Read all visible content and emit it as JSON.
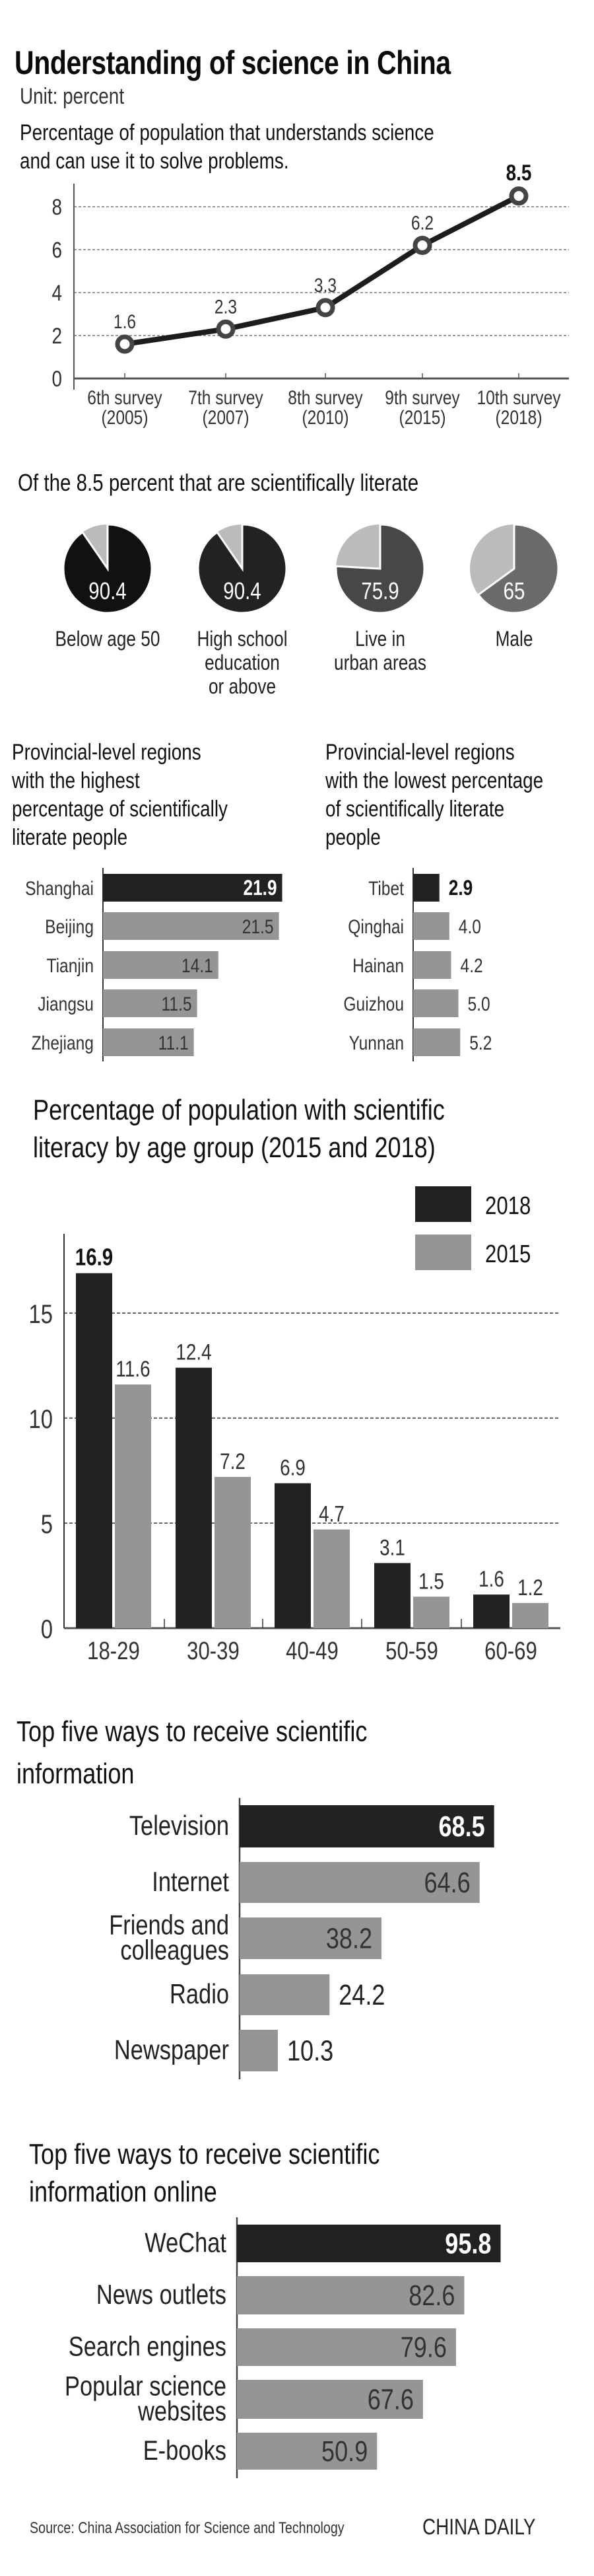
{
  "header": {
    "title": "Understanding of science in China",
    "unit": "Unit: percent"
  },
  "footer": {
    "source": "Source: China Association for Science and Technology",
    "brand": "CHINA DAILY"
  },
  "colors": {
    "dark": "#222222",
    "darkest": "#111111",
    "gray": "#959595",
    "light_gray": "#bbbbbb",
    "mid_dark": "#474747",
    "mid": "#6a6a6a",
    "text": "#333333"
  },
  "chart_data": [
    {
      "id": "survey-line",
      "type": "line",
      "title": "Percentage of population that understands science and can use it to solve problems.",
      "title_lines": [
        "Percentage of population that understands science",
        "and can use it to solve problems."
      ],
      "categories": [
        [
          "6th survey",
          "(2005)"
        ],
        [
          "7th survey",
          "(2007)"
        ],
        [
          "8th survey",
          "(2010)"
        ],
        [
          "9th survey",
          "(2015)"
        ],
        [
          "10th survey",
          "(2018)"
        ]
      ],
      "values": [
        1.6,
        2.3,
        3.3,
        6.2,
        8.5
      ],
      "value_labels": [
        "1.6",
        "2.3",
        "3.3",
        "6.2",
        "8.5"
      ],
      "highlight_index": 4,
      "yticks": [
        0,
        2,
        4,
        6,
        8
      ],
      "ylim": [
        0,
        9
      ],
      "grid": true,
      "xlabel": "",
      "ylabel": ""
    },
    {
      "id": "literate-pies",
      "type": "pie",
      "title": "Of the 8.5 percent that are scientifically literate",
      "items": [
        {
          "label_lines": [
            "Below age 50"
          ],
          "value": 90.4,
          "value_label": "90.4",
          "color": "#111111"
        },
        {
          "label_lines": [
            "High school",
            "education",
            "or above"
          ],
          "value": 90.4,
          "value_label": "90.4",
          "color": "#222222"
        },
        {
          "label_lines": [
            "Live in",
            "urban areas"
          ],
          "value": 75.9,
          "value_label": "75.9",
          "color": "#474747"
        },
        {
          "label_lines": [
            "Male"
          ],
          "value": 65,
          "value_label": "65",
          "color": "#6a6a6a"
        }
      ],
      "remainder_color": "#bbbbbb"
    },
    {
      "id": "regions-highest",
      "type": "bar",
      "orientation": "horizontal",
      "title_lines": [
        "Provincial-level regions",
        "with the highest",
        "percentage of scientifically",
        "literate people"
      ],
      "categories": [
        "Shanghai",
        "Beijing",
        "Tianjin",
        "Jiangsu",
        "Zhejiang"
      ],
      "values": [
        21.9,
        21.5,
        14.1,
        11.5,
        11.1
      ],
      "value_labels": [
        "21.9",
        "21.5",
        "14.1",
        "11.5",
        "11.1"
      ],
      "highlight_index": 0,
      "label_inside": true
    },
    {
      "id": "regions-lowest",
      "type": "bar",
      "orientation": "horizontal",
      "title_lines": [
        "Provincial-level regions",
        "with the lowest percentage",
        "of scientifically literate",
        "people"
      ],
      "categories": [
        "Tibet",
        "Qinghai",
        "Hainan",
        "Guizhou",
        "Yunnan"
      ],
      "values": [
        2.9,
        4.0,
        4.2,
        5.0,
        5.2
      ],
      "value_labels": [
        "2.9",
        "4.0",
        "4.2",
        "5.0",
        "5.2"
      ],
      "highlight_index": 0,
      "label_inside": false
    },
    {
      "id": "age-groups",
      "type": "bar",
      "orientation": "vertical",
      "title_lines": [
        "Percentage of population with scientific",
        "literacy by age group (2015 and 2018)"
      ],
      "categories": [
        "18-29",
        "30-39",
        "40-49",
        "50-59",
        "60-69"
      ],
      "series": [
        {
          "name": "2018",
          "values": [
            16.9,
            12.4,
            6.9,
            3.1,
            1.6
          ],
          "value_labels": [
            "16.9",
            "12.4",
            "6.9",
            "3.1",
            "1.6"
          ],
          "color": "#222222"
        },
        {
          "name": "2015",
          "values": [
            11.6,
            7.2,
            4.7,
            1.5,
            1.2
          ],
          "value_labels": [
            "11.6",
            "7.2",
            "4.7",
            "1.5",
            "1.2"
          ],
          "color": "#959595"
        }
      ],
      "yticks": [
        0,
        5,
        10,
        15
      ],
      "ylim": [
        0,
        18.5
      ],
      "grid": true,
      "legend": "top-right",
      "highlight": {
        "series": 0,
        "index": 0
      }
    },
    {
      "id": "ways-receive",
      "type": "bar",
      "orientation": "horizontal",
      "title_lines": [
        "Top five ways to receive scientific",
        "information"
      ],
      "categories": [
        [
          "Television"
        ],
        [
          "Internet"
        ],
        [
          "Friends and",
          "colleagues"
        ],
        [
          "Radio"
        ],
        [
          "Newspaper"
        ]
      ],
      "values": [
        68.5,
        64.6,
        38.2,
        24.2,
        10.3
      ],
      "value_labels": [
        "68.5",
        "64.6",
        "38.2",
        "24.2",
        "10.3"
      ],
      "highlight_index": 0
    },
    {
      "id": "ways-online",
      "type": "bar",
      "orientation": "horizontal",
      "title_lines": [
        "Top five ways to receive scientific",
        "information online"
      ],
      "categories": [
        [
          "WeChat"
        ],
        [
          "News outlets"
        ],
        [
          "Search engines"
        ],
        [
          "Popular science",
          "websites"
        ],
        [
          "E-books"
        ]
      ],
      "values": [
        95.8,
        82.6,
        79.6,
        67.6,
        50.9
      ],
      "value_labels": [
        "95.8",
        "82.6",
        "79.6",
        "67.6",
        "50.9"
      ],
      "highlight_index": 0
    }
  ]
}
